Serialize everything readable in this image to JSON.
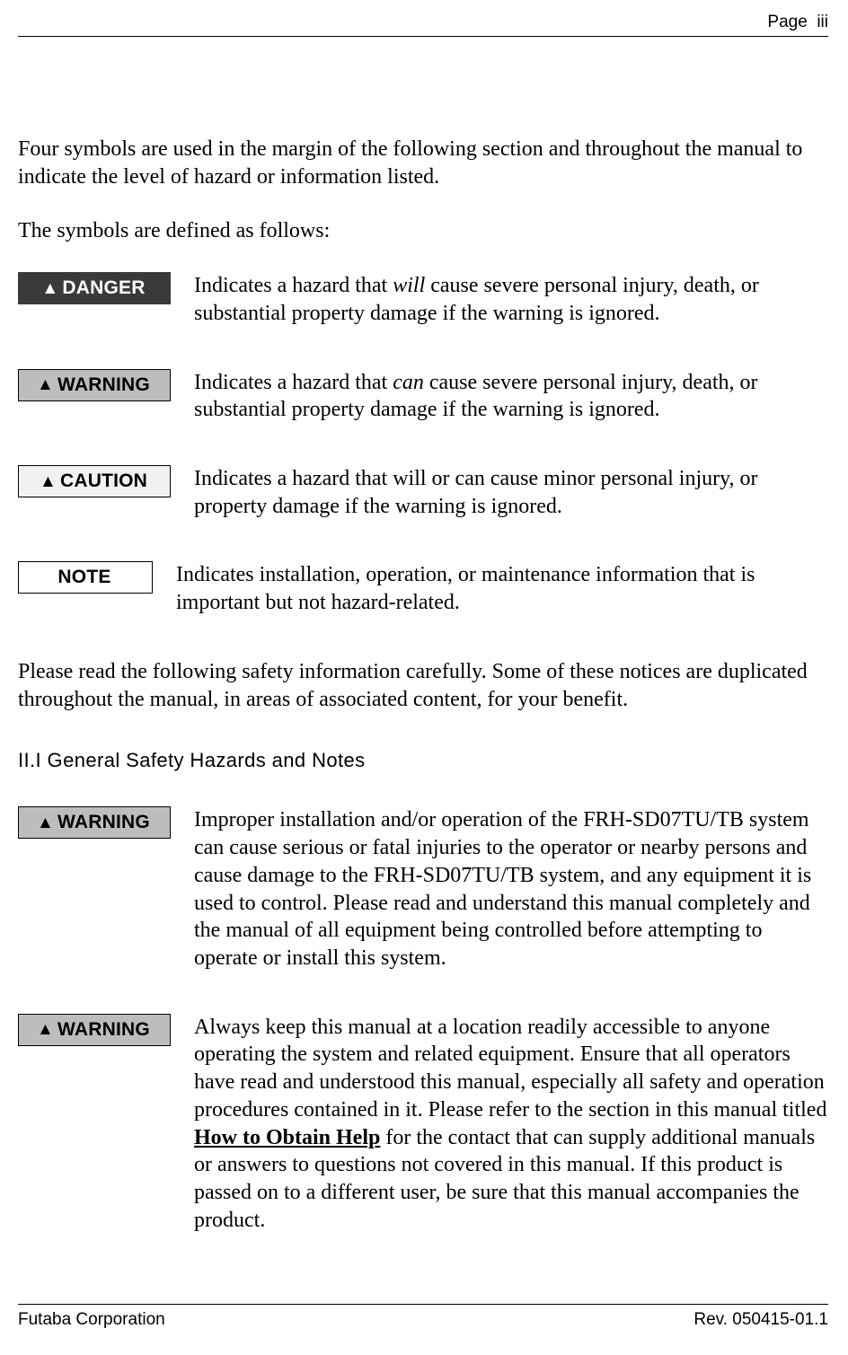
{
  "header": {
    "page_label": "Page",
    "page_number": "iii"
  },
  "intro_p1": "Four symbols are used in the margin of the following section and throughout the manual to indicate the level of hazard or information listed.",
  "intro_p2": "The symbols are defined as follows:",
  "definitions": [
    {
      "badge_label": "DANGER",
      "badge_style": "danger",
      "has_triangle": true,
      "text_pre": "Indicates a hazard that ",
      "text_em": "will",
      "text_post": " cause severe personal injury, death, or substantial property damage if the warning is ignored."
    },
    {
      "badge_label": "WARNING",
      "badge_style": "warning",
      "has_triangle": true,
      "text_pre": "Indicates a hazard that ",
      "text_em": "can",
      "text_post": " cause severe personal injury, death, or substantial property damage if the warning is ignored."
    },
    {
      "badge_label": "CAUTION",
      "badge_style": "caution",
      "has_triangle": true,
      "text_pre": "",
      "text_em": "",
      "text_post": "Indicates a hazard that will or can cause minor personal injury, or property damage if the warning is ignored."
    },
    {
      "badge_label": "NOTE",
      "badge_style": "note",
      "has_triangle": false,
      "text_pre": "",
      "text_em": "",
      "text_post": "Indicates installation, operation, or maintenance information that is important but not hazard-related."
    }
  ],
  "please_read": "Please read the following safety information carefully. Some of these notices are duplicated throughout the manual, in areas of associated content, for your benefit.",
  "section2": {
    "title": "II.I  General Safety Hazards and Notes",
    "items": [
      {
        "badge_label": "WARNING",
        "badge_style": "warning",
        "text": "Improper installation and/or operation of the FRH-SD07TU/TB system can cause serious or fatal injuries to the operator or nearby persons and cause damage to the FRH-SD07TU/TB system, and any equipment it is used to control. Please read and understand this manual completely and the manual of all equipment being controlled before attempting to operate or install this system."
      },
      {
        "badge_label": "WARNING",
        "badge_style": "warning",
        "text_pre": "Always keep this manual at a location readily accessible to anyone operating the system and related equipment. Ensure that all operators have read and understood this manual, especially all safety and operation procedures contained in it. Please refer to the section in this manual titled ",
        "text_link": "How to Obtain Help",
        "text_post": " for the contact that can supply additional manuals or answers to questions not covered in this manual. If this product is passed on to a different user, be sure that this manual accompanies the product."
      }
    ]
  },
  "footer": {
    "left": "Futaba Corporation",
    "right": "Rev. 050415-01.1"
  },
  "colors": {
    "danger_bg": "#3a3a3a",
    "warning_bg": "#bdbdbd",
    "caution_bg": "#f1f1f1",
    "note_bg": "#ffffff",
    "text": "#000000"
  }
}
